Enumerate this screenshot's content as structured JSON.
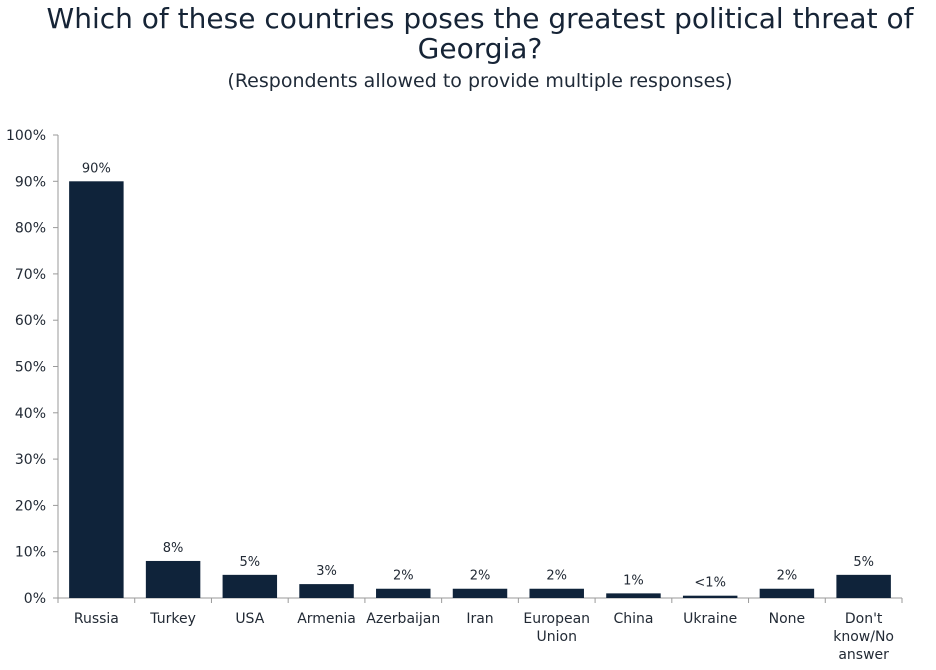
{
  "chart_data": {
    "type": "bar",
    "title": "Which of these countries poses the greatest political threat of\nGeorgia?",
    "subtitle": "(Respondents allowed to provide multiple responses)",
    "categories": [
      "Russia",
      "Turkey",
      "USA",
      "Armenia",
      "Azerbaijan",
      "Iran",
      "European Union",
      "China",
      "Ukraine",
      "None",
      "Don't know/No answer"
    ],
    "category_lines": [
      [
        "Russia"
      ],
      [
        "Turkey"
      ],
      [
        "USA"
      ],
      [
        "Armenia"
      ],
      [
        "Azerbaijan"
      ],
      [
        "Iran"
      ],
      [
        "European",
        "Union"
      ],
      [
        "China"
      ],
      [
        "Ukraine"
      ],
      [
        "None"
      ],
      [
        "Don't",
        "know/No",
        "answer"
      ]
    ],
    "values": [
      90,
      8,
      5,
      3,
      2,
      2,
      2,
      1,
      0.5,
      2,
      5
    ],
    "data_labels": [
      "90%",
      "8%",
      "5%",
      "3%",
      "2%",
      "2%",
      "2%",
      "1%",
      "<1%",
      "2%",
      "5%"
    ],
    "ylim": [
      0,
      100
    ],
    "yticks": [
      0,
      10,
      20,
      30,
      40,
      50,
      60,
      70,
      80,
      90,
      100
    ],
    "ytick_labels": [
      "0%",
      "10%",
      "20%",
      "30%",
      "40%",
      "50%",
      "60%",
      "70%",
      "80%",
      "90%",
      "100%"
    ],
    "xlabel": "",
    "ylabel": "",
    "grid": false,
    "legend": false,
    "colors": {
      "bar": "#0f233a",
      "axis": "#9a9a9a",
      "title": "#162436",
      "text": "#222a35"
    }
  }
}
